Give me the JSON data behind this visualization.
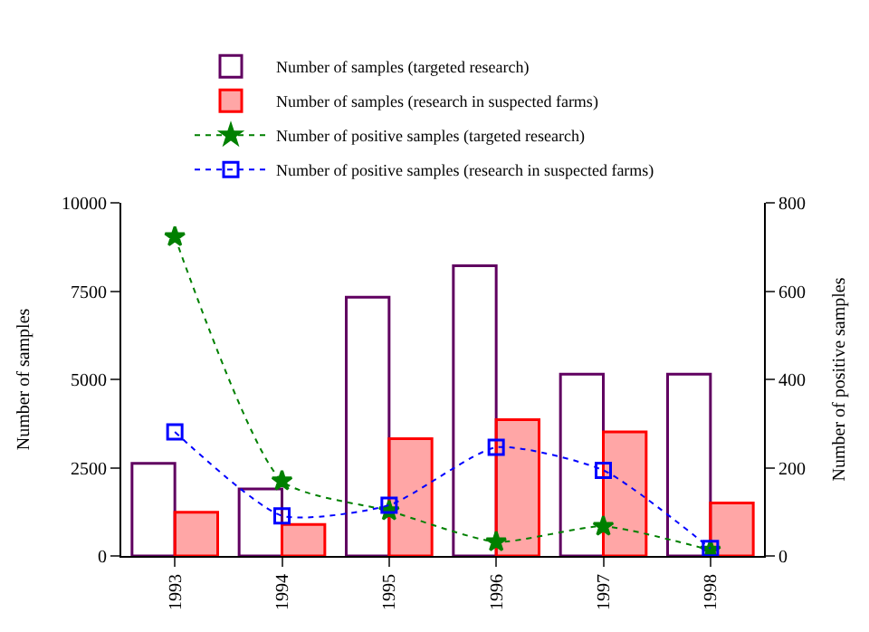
{
  "chart_data": {
    "type": "bar",
    "categories": [
      "1993",
      "1994",
      "1995",
      "1996",
      "1997",
      "1998"
    ],
    "ylabel": "Number of samples",
    "y2label": "Number of positive samples",
    "ylim": [
      0,
      10000
    ],
    "yticks": [
      0,
      2500,
      5000,
      7500,
      10000
    ],
    "y2lim": [
      0,
      800
    ],
    "y2ticks": [
      0,
      200,
      400,
      600,
      800
    ],
    "series": [
      {
        "name": "Number of samples (targeted research)",
        "color": "#600060",
        "values": [
          2620,
          1900,
          7330,
          8220,
          5150,
          5150
        ]
      },
      {
        "name": "Number of samples (research in suspected farms)",
        "color": "#ff0000",
        "values": [
          1240,
          890,
          3320,
          3860,
          3510,
          1500
        ]
      },
      {
        "name": "Number of positive samples (targeted research)",
        "type": "line",
        "axis": "y2",
        "color": "#008000",
        "marker": "star",
        "line_style": "dotted",
        "values": [
          723,
          170,
          102,
          32,
          67,
          13
        ]
      },
      {
        "name": "Number of positive samples (research in suspected farms)",
        "type": "line",
        "axis": "y2",
        "color": "#0000ff",
        "marker": "square",
        "line_style": "dotted",
        "values": [
          281,
          91,
          115,
          246,
          194,
          17
        ]
      }
    ],
    "legend": "top"
  }
}
